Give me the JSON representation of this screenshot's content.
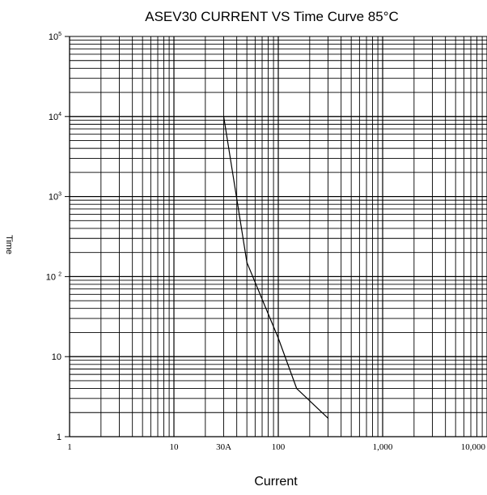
{
  "chart_data": {
    "type": "line",
    "title": "ASEV30 CURRENT VS Time Curve 85°C",
    "xlabel": "Current",
    "ylabel": "Time",
    "x_scale": "log",
    "y_scale": "log",
    "xlim": [
      1,
      10000
    ],
    "ylim": [
      1,
      100000
    ],
    "grid": true,
    "x_ticks": [
      {
        "value": 1,
        "label": "1"
      },
      {
        "value": 10,
        "label": "10"
      },
      {
        "value": 30,
        "label": "30A"
      },
      {
        "value": 100,
        "label": "100"
      },
      {
        "value": 1000,
        "label": "1,000"
      },
      {
        "value": 10000,
        "label": "10,000"
      }
    ],
    "y_ticks": [
      {
        "value": 1,
        "base": "1",
        "exp": ""
      },
      {
        "value": 10,
        "base": "10",
        "exp": ""
      },
      {
        "value": 100,
        "base": "10 ",
        "exp": "2"
      },
      {
        "value": 1000,
        "base": "10",
        "exp": "3"
      },
      {
        "value": 10000,
        "base": "10",
        "exp": "4"
      },
      {
        "value": 100000,
        "base": "10",
        "exp": "5"
      }
    ],
    "series": [
      {
        "x": [
          30,
          50,
          100,
          150,
          300
        ],
        "y": [
          10000,
          150,
          17,
          4,
          1.7
        ]
      }
    ]
  }
}
